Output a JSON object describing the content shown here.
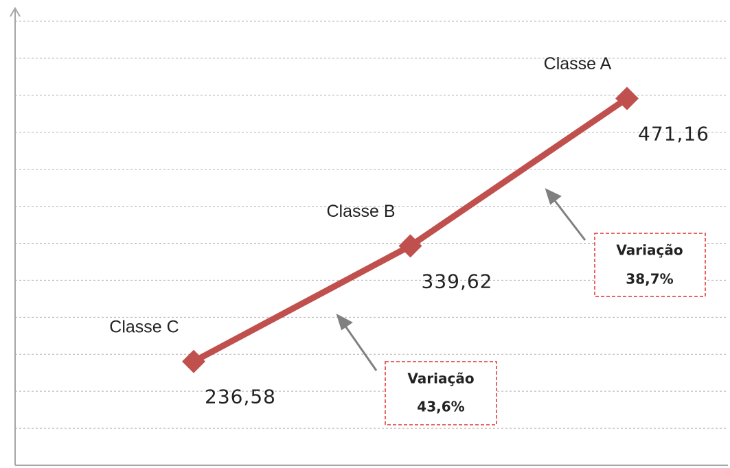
{
  "chart_data": {
    "type": "line",
    "categories": [
      "Classe C",
      "Classe B",
      "Classe A"
    ],
    "values": [
      236.58,
      339.62,
      471.16
    ],
    "value_labels": [
      "236,58",
      "339,62",
      "471,16"
    ],
    "color": "#c0504d",
    "ylim": [
      144,
      540
    ],
    "yticks": [
      177,
      210,
      243,
      276,
      309,
      342,
      375,
      408,
      441,
      474,
      507,
      540
    ],
    "grid": true,
    "annotations": [
      {
        "lines": [
          "Variação",
          "43,6%"
        ]
      },
      {
        "lines": [
          "Variação",
          "38,7%"
        ]
      }
    ]
  }
}
